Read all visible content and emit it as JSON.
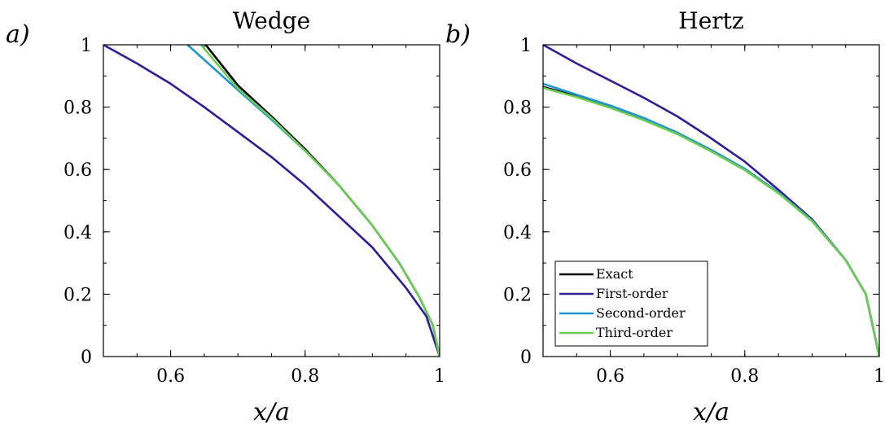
{
  "chart_data": [
    {
      "type": "line",
      "panel_label": "a)",
      "title": "Wedge",
      "xlabel": "x/a",
      "ylabel": "",
      "xlim": [
        0.5,
        1.0
      ],
      "ylim": [
        0,
        1
      ],
      "xticks": [
        0.6,
        0.8,
        1
      ],
      "xtick_labels": [
        "0.6",
        "0.8",
        "1"
      ],
      "yticks": [
        0,
        0.2,
        0.4,
        0.6,
        0.8,
        1
      ],
      "ytick_labels": [
        "0",
        "0.2",
        "0.4",
        "0.6",
        "0.8",
        "1"
      ],
      "series": [
        {
          "name": "Exact",
          "color": "#000000",
          "x": [
            0.652,
            0.7,
            0.75,
            0.8,
            0.85,
            0.9,
            0.94,
            0.97,
            0.99,
            1.0
          ],
          "y": [
            1.0,
            0.87,
            0.77,
            0.665,
            0.55,
            0.42,
            0.3,
            0.19,
            0.1,
            0.0
          ]
        },
        {
          "name": "First-order",
          "color": "#2E1E96",
          "x": [
            0.5,
            0.55,
            0.6,
            0.65,
            0.7,
            0.75,
            0.8,
            0.85,
            0.9,
            0.95,
            0.98,
            1.0
          ],
          "y": [
            1.0,
            0.94,
            0.875,
            0.8,
            0.72,
            0.64,
            0.55,
            0.45,
            0.35,
            0.22,
            0.13,
            0.0
          ]
        },
        {
          "name": "Second-order",
          "color": "#1E96D2",
          "x": [
            0.625,
            0.7,
            0.75,
            0.8,
            0.85,
            0.9,
            0.94,
            0.97,
            0.99,
            1.0
          ],
          "y": [
            1.0,
            0.855,
            0.76,
            0.66,
            0.55,
            0.42,
            0.3,
            0.19,
            0.1,
            0.0
          ]
        },
        {
          "name": "Third-order",
          "color": "#6ECC50",
          "x": [
            0.645,
            0.7,
            0.75,
            0.8,
            0.85,
            0.9,
            0.94,
            0.97,
            0.99,
            1.0
          ],
          "y": [
            1.0,
            0.86,
            0.765,
            0.66,
            0.55,
            0.42,
            0.3,
            0.19,
            0.1,
            0.0
          ]
        }
      ]
    },
    {
      "type": "line",
      "panel_label": "b)",
      "title": "Hertz",
      "xlabel": "x/a",
      "ylabel": "",
      "xlim": [
        0.5,
        1.0
      ],
      "ylim": [
        0,
        1
      ],
      "xticks": [
        0.6,
        0.8,
        1
      ],
      "xtick_labels": [
        "0.6",
        "0.8",
        "1"
      ],
      "yticks": [
        0,
        0.2,
        0.4,
        0.6,
        0.8,
        1
      ],
      "ytick_labels": [
        "0",
        "0.2",
        "0.4",
        "0.6",
        "0.8",
        "1"
      ],
      "legend": {
        "placement": "bottom-left",
        "entries": [
          "Exact",
          "First-order",
          "Second-order",
          "Third-order"
        ]
      },
      "series": [
        {
          "name": "Exact",
          "color": "#000000",
          "x": [
            0.5,
            0.55,
            0.6,
            0.65,
            0.7,
            0.75,
            0.8,
            0.85,
            0.9,
            0.95,
            0.98,
            1.0
          ],
          "y": [
            0.865,
            0.835,
            0.8,
            0.76,
            0.715,
            0.66,
            0.6,
            0.525,
            0.435,
            0.31,
            0.2,
            0.0
          ]
        },
        {
          "name": "First-order",
          "color": "#2E1E96",
          "x": [
            0.5,
            0.55,
            0.6,
            0.65,
            0.7,
            0.75,
            0.8,
            0.85,
            0.9,
            0.95,
            0.98,
            1.0
          ],
          "y": [
            1.0,
            0.94,
            0.885,
            0.83,
            0.77,
            0.7,
            0.625,
            0.535,
            0.44,
            0.31,
            0.2,
            0.0
          ]
        },
        {
          "name": "Second-order",
          "color": "#1E96D2",
          "x": [
            0.5,
            0.55,
            0.6,
            0.65,
            0.7,
            0.75,
            0.8,
            0.85,
            0.9,
            0.95,
            0.98,
            1.0
          ],
          "y": [
            0.875,
            0.84,
            0.805,
            0.765,
            0.718,
            0.663,
            0.602,
            0.527,
            0.437,
            0.31,
            0.2,
            0.0
          ]
        },
        {
          "name": "Third-order",
          "color": "#6ECC50",
          "x": [
            0.5,
            0.55,
            0.6,
            0.65,
            0.7,
            0.75,
            0.8,
            0.85,
            0.9,
            0.95,
            0.98,
            1.0
          ],
          "y": [
            0.862,
            0.832,
            0.798,
            0.758,
            0.713,
            0.658,
            0.598,
            0.524,
            0.434,
            0.31,
            0.2,
            0.0
          ]
        }
      ]
    }
  ]
}
